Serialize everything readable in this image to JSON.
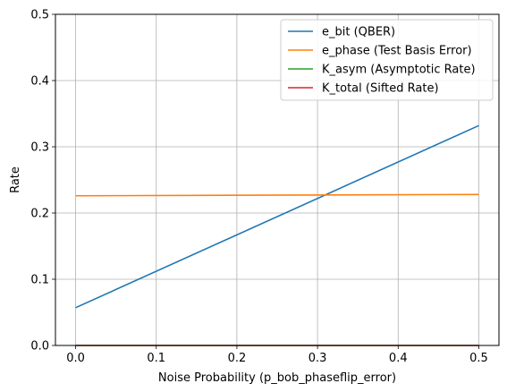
{
  "chart_data": {
    "type": "line",
    "title": "",
    "xlabel": "Noise Probability (p_bob_phaseflip_error)",
    "ylabel": "Rate",
    "xlim": [
      -0.025,
      0.525
    ],
    "ylim": [
      0.0,
      0.5
    ],
    "xticks": [
      0.0,
      0.1,
      0.2,
      0.3,
      0.4,
      0.5
    ],
    "xtick_labels": [
      "0.0",
      "0.1",
      "0.2",
      "0.3",
      "0.4",
      "0.5"
    ],
    "yticks": [
      0.0,
      0.1,
      0.2,
      0.3,
      0.4,
      0.5
    ],
    "ytick_labels": [
      "0.0",
      "0.1",
      "0.2",
      "0.3",
      "0.4",
      "0.5"
    ],
    "grid": true,
    "legend_position": "top-right",
    "series": [
      {
        "name": "e_bit (QBER)",
        "color": "#1f77b4",
        "x": [
          0.0,
          0.5
        ],
        "y": [
          0.057,
          0.332
        ]
      },
      {
        "name": "e_phase (Test Basis Error)",
        "color": "#ff7f0e",
        "x": [
          0.0,
          0.5
        ],
        "y": [
          0.226,
          0.228
        ]
      },
      {
        "name": "K_asym (Asymptotic Rate)",
        "color": "#2ca02c",
        "x": [
          0.0,
          0.5
        ],
        "y": [
          0.0,
          0.0
        ]
      },
      {
        "name": "K_total (Sifted Rate)",
        "color": "#d62728",
        "x": [
          0.0,
          0.5
        ],
        "y": [
          0.0,
          0.0
        ]
      }
    ]
  }
}
